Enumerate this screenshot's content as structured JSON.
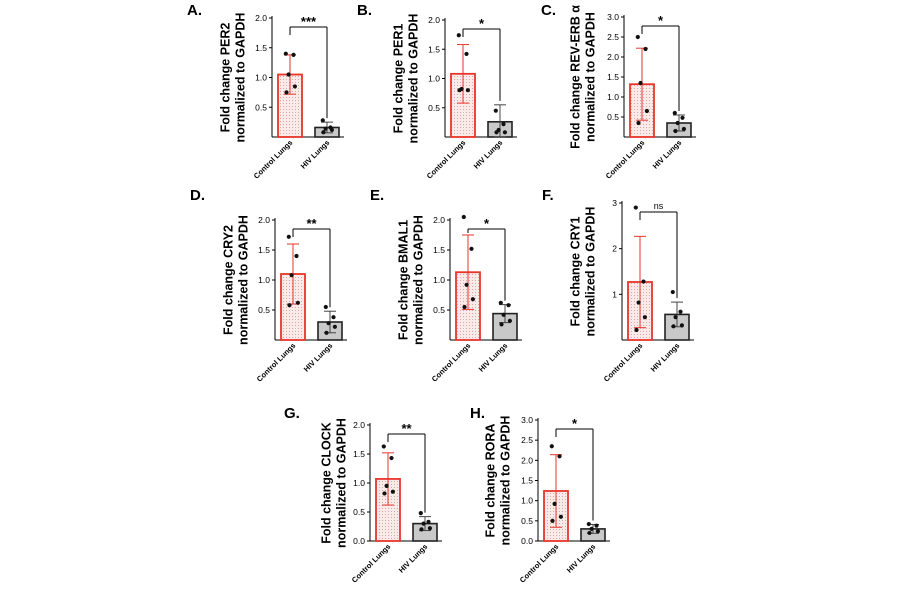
{
  "colors": {
    "control_bar": "#e8352c",
    "control_fill": "#fbeaea",
    "hiv_bar": "#222222",
    "hiv_fill": "#c9c9c9",
    "error_control": "#e8352c",
    "error_hiv": "#444444",
    "points": "#111111"
  },
  "chart_data": [
    {
      "panel": "A.",
      "type": "bar",
      "ylabel_lines": [
        "Fold change PER2",
        "normalized to GAPDH"
      ],
      "categories": [
        "Control Lungs",
        "HIV Lungs"
      ],
      "values": [
        1.05,
        0.16
      ],
      "errors": [
        0.33,
        0.09
      ],
      "points": [
        [
          1.4,
          1.38,
          1.05,
          0.85,
          0.75
        ],
        [
          0.28,
          0.16,
          0.14,
          0.12,
          0.08
        ]
      ],
      "ylim": [
        0,
        2.0
      ],
      "yticks": [
        0.5,
        1.0,
        1.5,
        2.0
      ],
      "ytick_labels": [
        "0.5",
        "1.0",
        "1.5",
        "2.0"
      ],
      "significance": "***"
    },
    {
      "panel": "B.",
      "type": "bar",
      "ylabel_lines": [
        "Fold change PER1",
        "normalized to GAPDH"
      ],
      "categories": [
        "Control Lungs",
        "HIV Lungs"
      ],
      "values": [
        1.08,
        0.26
      ],
      "errors": [
        0.5,
        0.29
      ],
      "points": [
        [
          1.74,
          1.42,
          0.82,
          0.8,
          0.8
        ],
        [
          0.45,
          0.22,
          0.12,
          0.08,
          0.08
        ]
      ],
      "ylim": [
        0,
        2.0
      ],
      "yticks": [
        0.5,
        1.0,
        1.5,
        2.0
      ],
      "ytick_labels": [
        "0.5",
        "1.0",
        "1.5",
        "2.0"
      ],
      "significance": "*"
    },
    {
      "panel": "C.",
      "type": "bar",
      "ylabel_lines": [
        "Fold change REV-ERB α",
        "normalized to GAPDH"
      ],
      "categories": [
        "Control Lungs",
        "HIV Lungs"
      ],
      "values": [
        1.32,
        0.35
      ],
      "errors": [
        0.9,
        0.2
      ],
      "points": [
        [
          2.5,
          2.2,
          1.35,
          0.65,
          0.35
        ],
        [
          0.6,
          0.48,
          0.35,
          0.2,
          0.15
        ]
      ],
      "ylim": [
        0,
        3.0
      ],
      "yticks": [
        0.5,
        1.0,
        1.5,
        2.0,
        2.5,
        3.0
      ],
      "ytick_labels": [
        "0.5",
        "1.0",
        "1.5",
        "2.0",
        "2.5",
        "3.0"
      ],
      "significance": "*"
    },
    {
      "panel": "D.",
      "type": "bar",
      "ylabel_lines": [
        "Fold change CRY2",
        "normalized to GAPDH"
      ],
      "categories": [
        "Control Lungs",
        "HIV Lungs"
      ],
      "values": [
        1.1,
        0.3
      ],
      "errors": [
        0.5,
        0.18
      ],
      "points": [
        [
          1.72,
          1.4,
          1.08,
          0.62,
          0.58
        ],
        [
          0.55,
          0.38,
          0.28,
          0.22,
          0.12
        ]
      ],
      "ylim": [
        0,
        2.0
      ],
      "yticks": [
        0.5,
        1.0,
        1.5,
        2.0
      ],
      "ytick_labels": [
        "0.5",
        "1.0",
        "1.5",
        "2.0"
      ],
      "significance": "**"
    },
    {
      "panel": "E.",
      "type": "bar",
      "ylabel_lines": [
        "Fold change BMAL1",
        "normalized to GAPDH"
      ],
      "categories": [
        "Control Lungs",
        "HIV Lungs"
      ],
      "values": [
        1.13,
        0.44
      ],
      "errors": [
        0.62,
        0.15
      ],
      "points": [
        [
          2.05,
          1.52,
          0.92,
          0.68,
          0.55
        ],
        [
          0.62,
          0.58,
          0.42,
          0.32,
          0.26
        ]
      ],
      "ylim": [
        0,
        2.0
      ],
      "yticks": [
        0.5,
        1.0,
        1.5,
        2.0
      ],
      "ytick_labels": [
        "0.5",
        "1.0",
        "1.5",
        "2.0"
      ],
      "significance": "*"
    },
    {
      "panel": "F.",
      "type": "bar",
      "ylabel_lines": [
        "Fold change CRY1",
        "normalized to GAPDH"
      ],
      "categories": [
        "Control Lungs",
        "HIV Lungs"
      ],
      "values": [
        1.27,
        0.56
      ],
      "errors": [
        1.0,
        0.27
      ],
      "points": [
        [
          2.9,
          1.28,
          0.82,
          0.5,
          0.22
        ],
        [
          1.05,
          0.62,
          0.5,
          0.32,
          0.3
        ]
      ],
      "ylim": [
        0,
        3.0
      ],
      "yticks": [
        1,
        2,
        3
      ],
      "ytick_labels": [
        "1",
        "2",
        "3"
      ],
      "significance": "ns"
    },
    {
      "panel": "G.",
      "type": "bar",
      "ylabel_lines": [
        "Fold change CLOCK",
        "normalized to GAPDH"
      ],
      "categories": [
        "Control Lungs",
        "HIV Lungs"
      ],
      "values": [
        1.07,
        0.3
      ],
      "errors": [
        0.45,
        0.12
      ],
      "points": [
        [
          1.63,
          1.43,
          0.95,
          0.85,
          0.82
        ],
        [
          0.48,
          0.33,
          0.3,
          0.22,
          0.2
        ]
      ],
      "ylim": [
        0,
        2.0
      ],
      "yticks": [
        0.0,
        0.5,
        1.0,
        1.5,
        2.0
      ],
      "ytick_labels": [
        "0.0",
        "0.5",
        "1.0",
        "1.5",
        "2.0"
      ],
      "significance": "**"
    },
    {
      "panel": "H.",
      "type": "bar",
      "ylabel_lines": [
        "Fold change RORA",
        "normalized to GAPDH"
      ],
      "categories": [
        "Control Lungs",
        "HIV Lungs"
      ],
      "values": [
        1.24,
        0.3
      ],
      "errors": [
        0.9,
        0.11
      ],
      "points": [
        [
          2.35,
          2.1,
          0.92,
          0.6,
          0.5
        ],
        [
          0.42,
          0.38,
          0.3,
          0.24,
          0.2
        ]
      ],
      "ylim": [
        0,
        3.0
      ],
      "yticks": [
        0.0,
        0.5,
        1.0,
        1.5,
        2.0,
        2.5,
        3.0
      ],
      "ytick_labels": [
        "0.0",
        "0.5",
        "1.0",
        "1.5",
        "2.0",
        "2.5",
        "3.0"
      ],
      "significance": "*"
    }
  ]
}
